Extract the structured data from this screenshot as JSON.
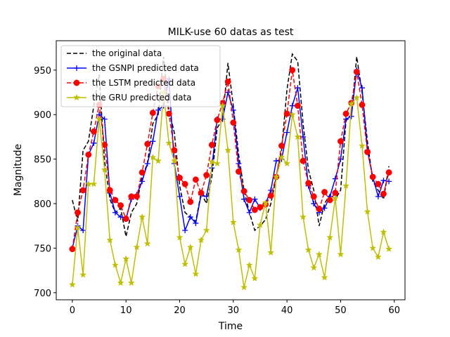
{
  "chart_data": {
    "type": "line",
    "title": "MILK-use 60 datas as test",
    "xlabel": "Time",
    "ylabel": "Magnitude",
    "xlim": [
      -3,
      62
    ],
    "ylim": [
      692,
      983
    ],
    "xticks": [
      0,
      10,
      20,
      30,
      40,
      50,
      60
    ],
    "yticks": [
      700,
      750,
      800,
      850,
      900,
      950
    ],
    "grid": false,
    "legend_position": "top-left",
    "series": [
      {
        "name": "the original data",
        "color": "#000000",
        "linestyle": "dashed",
        "marker": "none",
        "values": [
          804,
          780,
          860,
          870,
          910,
          945,
          848,
          805,
          790,
          795,
          763,
          790,
          800,
          830,
          845,
          890,
          900,
          965,
          905,
          880,
          820,
          790,
          785,
          780,
          812,
          800,
          830,
          885,
          895,
          958,
          910,
          855,
          815,
          790,
          770,
          775,
          782,
          800,
          830,
          860,
          928,
          968,
          960,
          890,
          838,
          815,
          775,
          800,
          810,
          805,
          815,
          893,
          900,
          965,
          925,
          870,
          825,
          815,
          805,
          842
        ]
      },
      {
        "name": "the GSNPI predicted data",
        "color": "#0000ff",
        "linestyle": "solid",
        "marker": "plus",
        "values": [
          750,
          775,
          770,
          855,
          868,
          900,
          895,
          812,
          790,
          785,
          783,
          805,
          810,
          825,
          845,
          870,
          905,
          910,
          940,
          845,
          808,
          770,
          785,
          778,
          810,
          808,
          840,
          895,
          895,
          925,
          905,
          845,
          805,
          790,
          805,
          795,
          800,
          815,
          848,
          850,
          880,
          910,
          930,
          875,
          820,
          800,
          790,
          795,
          808,
          828,
          850,
          895,
          898,
          950,
          930,
          860,
          830,
          808,
          826,
          825
        ]
      },
      {
        "name": "the LSTM predicted data",
        "color": "#ff0000",
        "linestyle": "dashed",
        "marker": "circle",
        "values": [
          749,
          790,
          815,
          855,
          881,
          911,
          866,
          815,
          804,
          798,
          783,
          808,
          808,
          835,
          867,
          902,
          932,
          940,
          901,
          860,
          829,
          822,
          802,
          827,
          812,
          832,
          866,
          894,
          913,
          937,
          891,
          836,
          814,
          804,
          793,
          796,
          799,
          809,
          830,
          865,
          901,
          950,
          910,
          848,
          823,
          808,
          794,
          813,
          804,
          812,
          870,
          901,
          913,
          948,
          911,
          858,
          830,
          822,
          811,
          835
        ]
      },
      {
        "name": "the GRU predicted data",
        "color": "#bfbf00",
        "linestyle": "solid",
        "marker": "star",
        "values": [
          709,
          773,
          720,
          822,
          822,
          895,
          838,
          759,
          731,
          711,
          738,
          711,
          751,
          785,
          755,
          852,
          848,
          925,
          868,
          848,
          762,
          732,
          751,
          721,
          759,
          770,
          847,
          845,
          910,
          860,
          779,
          748,
          706,
          731,
          716,
          776,
          801,
          745,
          830,
          852,
          845,
          900,
          875,
          785,
          748,
          728,
          743,
          717,
          762,
          806,
          743,
          820,
          912,
          919,
          865,
          791,
          750,
          740,
          768,
          749
        ]
      }
    ]
  }
}
